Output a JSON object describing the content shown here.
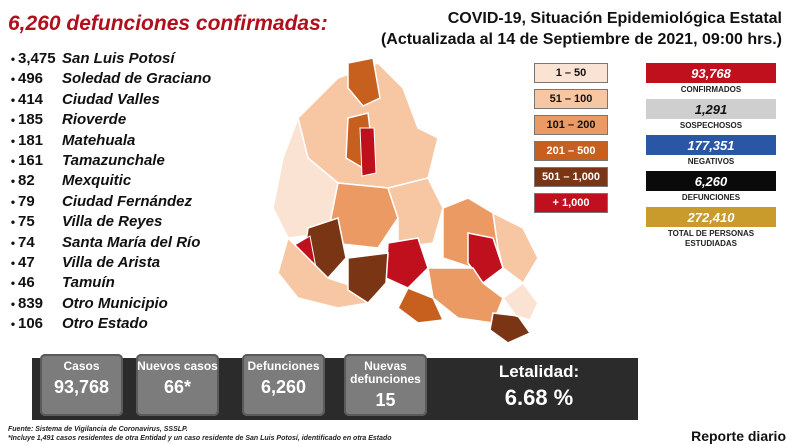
{
  "headline": "6,260 defunciones confirmadas:",
  "title": {
    "line1": "COVID-19, Situación Epidemiológica Estatal",
    "line2": "(Actualizada al 14 de Septiembre de 2021, 09:00 hrs.)"
  },
  "municipalities": [
    {
      "value": "3,475",
      "name": "San Luis Potosí"
    },
    {
      "value": "496",
      "name": "Soledad de Graciano"
    },
    {
      "value": "414",
      "name": "Ciudad Valles"
    },
    {
      "value": "185",
      "name": "Rioverde"
    },
    {
      "value": "181",
      "name": "Matehuala"
    },
    {
      "value": "161",
      "name": "Tamazunchale"
    },
    {
      "value": "82",
      "name": "Mexquitic"
    },
    {
      "value": "79",
      "name": "Ciudad Fernández"
    },
    {
      "value": "75",
      "name": "Villa de Reyes"
    },
    {
      "value": "74",
      "name": "Santa María del Río"
    },
    {
      "value": "47",
      "name": "Villa de Arista"
    },
    {
      "value": "46",
      "name": "Tamuín"
    },
    {
      "value": "839",
      "name": "Otro Municipio"
    },
    {
      "value": "106",
      "name": "Otro Estado"
    }
  ],
  "legend": [
    {
      "label": "1 – 50",
      "color": "#fbe3d4",
      "text_color": "#111111"
    },
    {
      "label": "51 – 100",
      "color": "#f7c6a3",
      "text_color": "#111111"
    },
    {
      "label": "101 – 200",
      "color": "#eb9a63",
      "text_color": "#111111"
    },
    {
      "label": "201 – 500",
      "color": "#c7601e",
      "text_color": "#ffffff"
    },
    {
      "label": "501 – 1,000",
      "color": "#7a3514",
      "text_color": "#ffffff"
    },
    {
      "label": "+ 1,000",
      "color": "#c0101e",
      "text_color": "#ffffff"
    }
  ],
  "stats": [
    {
      "value": "93,768",
      "label": "CONFIRMADOS",
      "color": "#c0101e",
      "text_color": "#ffffff"
    },
    {
      "value": "1,291",
      "label": "SOSPECHOSOS",
      "color": "#cfcfcf",
      "text_color": "#111111"
    },
    {
      "value": "177,351",
      "label": "NEGATIVOS",
      "color": "#2a56a6",
      "text_color": "#ffffff"
    },
    {
      "value": "6,260",
      "label": "DEFUNCIONES",
      "color": "#0a0a0a",
      "text_color": "#ffffff"
    },
    {
      "value": "272,410",
      "label": "TOTAL DE PERSONAS ESTUDIADAS",
      "color": "#c99a2c",
      "text_color": "#ffffff"
    }
  ],
  "cards": {
    "casos": {
      "label": "Casos",
      "value": "93,768"
    },
    "nuevos_casos": {
      "label": "Nuevos casos",
      "value": "66*"
    },
    "defunciones": {
      "label": "Defunciones",
      "value": "6,260"
    },
    "nuevas_defunciones": {
      "label": "Nuevas defunciones",
      "value": "15"
    },
    "letalidad": {
      "label": "Letalidad:",
      "value": "6.68 %"
    }
  },
  "footer": {
    "source": "Fuente: Sistema de Vigilancia de Coronavirus, SSSLP.",
    "note": "*Incluye 1,491 casos residentes de otra Entidad y un caso residente de San Luis Potosí, identificado en otra Estado",
    "report": "Reporte diario"
  }
}
